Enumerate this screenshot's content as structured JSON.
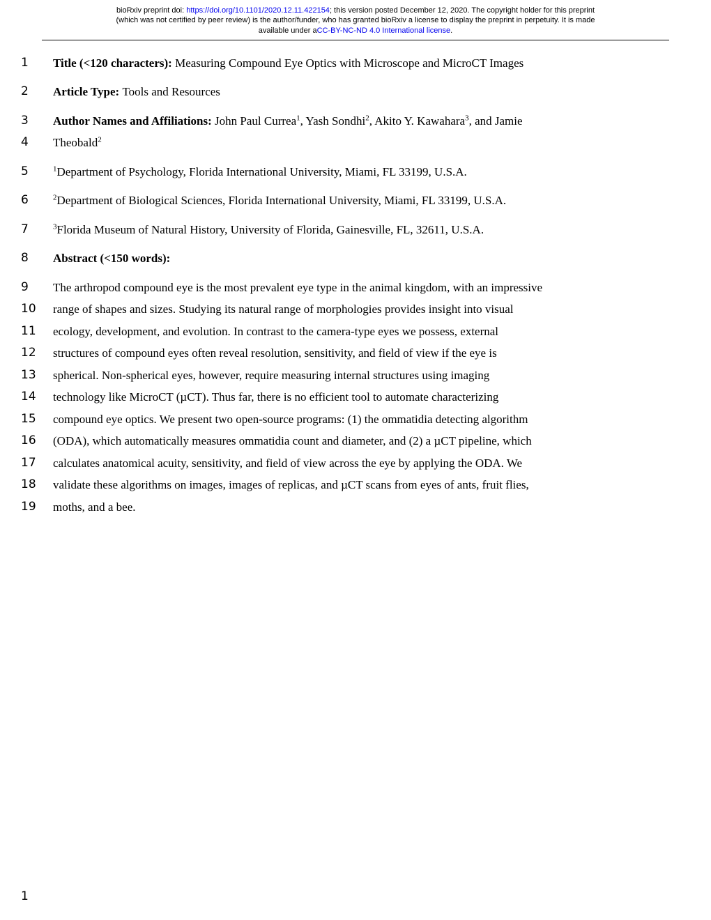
{
  "preprint": {
    "line1_prefix": "bioRxiv preprint doi: ",
    "doi_url": "https://doi.org/10.1101/2020.12.11.422154",
    "line1_suffix": "; this version posted December 12, 2020. The copyright holder for this preprint",
    "line2": "(which was not certified by peer review) is the author/funder, who has granted bioRxiv a license to display the preprint in perpetuity. It is made",
    "line3_prefix": "available under a",
    "license_text": "CC-BY-NC-ND 4.0 International license",
    "line3_suffix": "."
  },
  "lines": {
    "l1": {
      "n": "1",
      "label": "Title (<120 characters): ",
      "rest": "Measuring Compound Eye Optics with Microscope and MicroCT Images"
    },
    "l2": {
      "n": "2",
      "label": "Article Type: ",
      "rest": "Tools and Resources"
    },
    "l3": {
      "n": "3",
      "label": "Author Names and Affiliations: ",
      "a1": "John Paul Currea",
      "s1": "1",
      "sep1": ", ",
      "a2": "Yash Sondhi",
      "s2": "2",
      "sep2": ", ",
      "a3": "Akito Y. Kawahara",
      "s3": "3",
      "sep3": ", and Jamie"
    },
    "l4": {
      "n": "4",
      "a4": "Theobald",
      "s4": "2"
    },
    "l5": {
      "n": "5",
      "sup": "1",
      "text": "Department of Psychology, Florida International University, Miami, FL 33199, U.S.A."
    },
    "l6": {
      "n": "6",
      "sup": "2",
      "text": "Department of Biological Sciences, Florida International University, Miami, FL 33199, U.S.A."
    },
    "l7": {
      "n": "7",
      "sup": "3",
      "text": "Florida Museum of Natural History, University of Florida, Gainesville, FL, 32611, U.S.A."
    },
    "l8": {
      "n": "8",
      "label": "Abstract (<150 words):"
    },
    "l9": {
      "n": "9",
      "text": "The arthropod compound eye is the most prevalent eye type in the animal kingdom, with an impressive"
    },
    "l10": {
      "n": "10",
      "text": "range of shapes and sizes. Studying its natural range of morphologies provides insight into visual"
    },
    "l11": {
      "n": "11",
      "text": "ecology, development, and evolution. In contrast to the camera-type eyes we possess, external"
    },
    "l12": {
      "n": "12",
      "text": "structures of compound eyes often reveal resolution, sensitivity, and field of view if the eye is"
    },
    "l13": {
      "n": "13",
      "text": "spherical. Non-spherical eyes, however, require measuring internal structures using imaging"
    },
    "l14": {
      "n": "14",
      "text": "technology like MicroCT (µCT). Thus far, there is no efficient tool to automate characterizing"
    },
    "l15": {
      "n": "15",
      "text": "compound eye optics. We present two open-source programs: (1) the ommatidia detecting algorithm"
    },
    "l16": {
      "n": "16",
      "text": "(ODA), which automatically measures ommatidia count and diameter, and (2) a µCT pipeline, which"
    },
    "l17": {
      "n": "17",
      "text": "calculates anatomical acuity, sensitivity, and field of view across the eye by applying the ODA. We"
    },
    "l18": {
      "n": "18",
      "text": "validate these algorithms on images, images of replicas, and µCT scans from eyes of ants, fruit flies,"
    },
    "l19": {
      "n": "19",
      "text": "moths, and a bee."
    }
  },
  "page_number": "1"
}
